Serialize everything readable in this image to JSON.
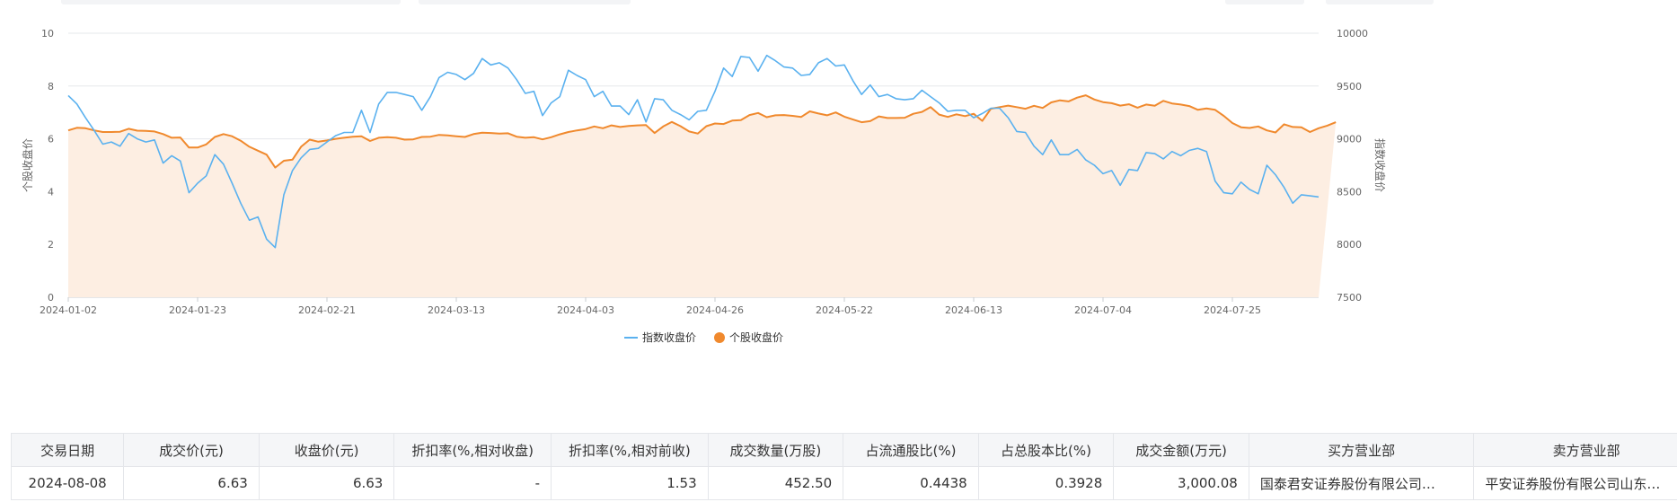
{
  "chart_data": {
    "type": "line",
    "x_ticks": [
      "2024-01-02",
      "2024-01-23",
      "2024-02-21",
      "2024-03-13",
      "2024-04-03",
      "2024-04-26",
      "2024-05-22",
      "2024-06-13",
      "2024-07-04",
      "2024-07-25"
    ],
    "y_left": {
      "label": "个股收盘价",
      "ticks": [
        0,
        2,
        4,
        6,
        8,
        10
      ],
      "lim": [
        0,
        10
      ]
    },
    "y_right": {
      "label": "指数收盘价",
      "ticks": [
        7500,
        8000,
        8500,
        9000,
        9500,
        10000
      ],
      "lim": [
        7500,
        10000
      ]
    },
    "legend_position": "bottom-center",
    "grid": true,
    "series": [
      {
        "name": "指数收盘价",
        "axis": "right",
        "color": "#5ab1ef",
        "values": [
          9410,
          9330,
          9200,
          9080,
          8950,
          8970,
          8930,
          9050,
          9000,
          8970,
          8990,
          8770,
          8840,
          8790,
          8490,
          8580,
          8650,
          8850,
          8760,
          8580,
          8390,
          8230,
          8260,
          8050,
          7970,
          8470,
          8700,
          8820,
          8900,
          8910,
          8970,
          9030,
          9060,
          9060,
          9270,
          9060,
          9330,
          9440,
          9440,
          9420,
          9400,
          9270,
          9400,
          9580,
          9630,
          9610,
          9560,
          9620,
          9760,
          9700,
          9720,
          9670,
          9560,
          9430,
          9450,
          9220,
          9340,
          9400,
          9650,
          9600,
          9560,
          9400,
          9450,
          9310,
          9310,
          9230,
          9370,
          9160,
          9380,
          9370,
          9270,
          9230,
          9180,
          9260,
          9270,
          9450,
          9670,
          9590,
          9780,
          9770,
          9640,
          9790,
          9740,
          9680,
          9670,
          9600,
          9610,
          9720,
          9760,
          9690,
          9700,
          9550,
          9420,
          9510,
          9400,
          9420,
          9380,
          9370,
          9380,
          9460,
          9400,
          9340,
          9260,
          9270,
          9270,
          9200,
          9240,
          9290,
          9290,
          9200,
          9070,
          9060,
          8930,
          8850,
          8990,
          8850,
          8850,
          8900,
          8800,
          8750,
          8670,
          8700,
          8560,
          8710,
          8700,
          8870,
          8860,
          8810,
          8880,
          8840,
          8890,
          8910,
          8880,
          8600,
          8490,
          8480,
          8590,
          8520,
          8480,
          8750,
          8660,
          8540,
          8390,
          8470,
          8460,
          8450
        ]
      },
      {
        "name": "个股收盘价",
        "axis": "left",
        "color": "#f0892d",
        "values": [
          6.32,
          6.42,
          6.4,
          6.32,
          6.26,
          6.26,
          6.27,
          6.38,
          6.31,
          6.3,
          6.28,
          6.18,
          6.04,
          6.05,
          5.67,
          5.67,
          5.79,
          6.07,
          6.18,
          6.1,
          5.93,
          5.7,
          5.55,
          5.4,
          4.91,
          5.17,
          5.21,
          5.7,
          5.97,
          5.89,
          5.94,
          6.0,
          6.04,
          6.08,
          6.1,
          5.92,
          6.04,
          6.06,
          6.04,
          5.97,
          5.98,
          6.07,
          6.08,
          6.15,
          6.13,
          6.1,
          6.07,
          6.18,
          6.23,
          6.22,
          6.2,
          6.21,
          6.08,
          6.04,
          6.06,
          5.98,
          6.06,
          6.17,
          6.26,
          6.32,
          6.37,
          6.47,
          6.4,
          6.51,
          6.45,
          6.49,
          6.51,
          6.52,
          6.22,
          6.47,
          6.64,
          6.48,
          6.28,
          6.2,
          6.48,
          6.58,
          6.56,
          6.69,
          6.71,
          6.9,
          6.98,
          6.82,
          6.89,
          6.9,
          6.87,
          6.83,
          7.04,
          6.96,
          6.89,
          7.0,
          6.84,
          6.73,
          6.63,
          6.67,
          6.85,
          6.79,
          6.79,
          6.8,
          6.95,
          7.02,
          7.2,
          6.92,
          6.83,
          6.93,
          6.86,
          6.95,
          6.68,
          7.14,
          7.2,
          7.26,
          7.2,
          7.14,
          7.25,
          7.17,
          7.38,
          7.46,
          7.42,
          7.56,
          7.65,
          7.49,
          7.39,
          7.35,
          7.26,
          7.31,
          7.18,
          7.3,
          7.25,
          7.44,
          7.34,
          7.3,
          7.24,
          7.1,
          7.15,
          7.1,
          6.87,
          6.6,
          6.44,
          6.41,
          6.47,
          6.32,
          6.24,
          6.55,
          6.45,
          6.44,
          6.26,
          6.4,
          6.5,
          6.63
        ]
      }
    ]
  },
  "table": {
    "headers": [
      "交易日期",
      "成交价(元)",
      "收盘价(元)",
      "折扣率(%,相对收盘)",
      "折扣率(%,相对前收)",
      "成交数量(万股)",
      "占流通股比(%)",
      "占总股本比(%)",
      "成交金额(万元)",
      "买方营业部",
      "卖方营业部"
    ],
    "rows": [
      [
        "2024-08-08",
        "6.63",
        "6.63",
        "-",
        "1.53",
        "452.50",
        "0.4438",
        "0.3928",
        "3,000.08",
        "国泰君安证券股份有限公司…",
        "平安证券股份有限公司山东…"
      ]
    ]
  }
}
